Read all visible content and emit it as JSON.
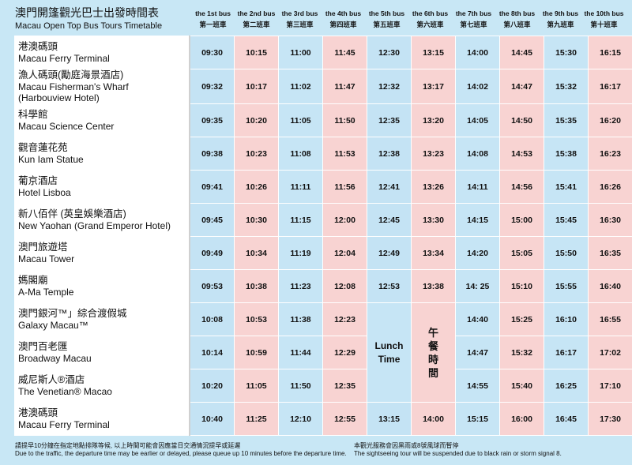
{
  "title": {
    "zh": "澳門開篷觀光巴士出發時間表",
    "en": "Macau Open Top Bus Tours Timetable"
  },
  "buses": [
    {
      "en": "the 1st bus",
      "zh": "第一班車"
    },
    {
      "en": "the 2nd bus",
      "zh": "第二班車"
    },
    {
      "en": "the 3rd bus",
      "zh": "第三班車"
    },
    {
      "en": "the 4th bus",
      "zh": "第四班車"
    },
    {
      "en": "the 5th bus",
      "zh": "第五班車"
    },
    {
      "en": "the 6th bus",
      "zh": "第六班車"
    },
    {
      "en": "the 7th bus",
      "zh": "第七班車"
    },
    {
      "en": "the 8th bus",
      "zh": "第八班車"
    },
    {
      "en": "the 9th bus",
      "zh": "第九班車"
    },
    {
      "en": "the 10th bus",
      "zh": "第十班車"
    }
  ],
  "stops": [
    {
      "zh": "港澳碼頭",
      "en": "Macau Ferry Terminal",
      "times": [
        "09:30",
        "10:15",
        "11:00",
        "11:45",
        "12:30",
        "13:15",
        "14:00",
        "14:45",
        "15:30",
        "16:15"
      ]
    },
    {
      "zh": "漁人碼頭(勵庭海景酒店)",
      "en": "Macau Fisherman's Wharf",
      "en2": "(Harbouview Hotel)",
      "times": [
        "09:32",
        "10:17",
        "11:02",
        "11:47",
        "12:32",
        "13:17",
        "14:02",
        "14:47",
        "15:32",
        "16:17"
      ]
    },
    {
      "zh": "科學館",
      "en": "Macau Science Center",
      "times": [
        "09:35",
        "10:20",
        "11:05",
        "11:50",
        "12:35",
        "13:20",
        "14:05",
        "14:50",
        "15:35",
        "16:20"
      ]
    },
    {
      "zh": "觀音蓮花苑",
      "en": "Kun Iam Statue",
      "times": [
        "09:38",
        "10:23",
        "11:08",
        "11:53",
        "12:38",
        "13:23",
        "14:08",
        "14:53",
        "15:38",
        "16:23"
      ]
    },
    {
      "zh": "葡京酒店",
      "en": "Hotel Lisboa",
      "times": [
        "09:41",
        "10:26",
        "11:11",
        "11:56",
        "12:41",
        "13:26",
        "14:11",
        "14:56",
        "15:41",
        "16:26"
      ]
    },
    {
      "zh": "新八佰伴 (英皇娛樂酒店)",
      "en": "New Yaohan (Grand Emperor Hotel)",
      "times": [
        "09:45",
        "10:30",
        "11:15",
        "12:00",
        "12:45",
        "13:30",
        "14:15",
        "15:00",
        "15:45",
        "16:30"
      ]
    },
    {
      "zh": "澳門旅遊塔",
      "en": "Macau Tower",
      "times": [
        "09:49",
        "10:34",
        "11:19",
        "12:04",
        "12:49",
        "13:34",
        "14:20",
        "15:05",
        "15:50",
        "16:35"
      ]
    },
    {
      "zh": "媽閣廟",
      "en": "A-Ma Temple",
      "times": [
        "09:53",
        "10:38",
        "11:23",
        "12:08",
        "12:53",
        "13:38",
        "14: 25",
        "15:10",
        "15:55",
        "16:40"
      ]
    },
    {
      "zh": "澳門銀河™」綜合渡假城",
      "en": "Galaxy Macau™",
      "times": [
        "10:08",
        "10:53",
        "11:38",
        "12:23",
        "",
        "",
        "14:40",
        "15:25",
        "16:10",
        "16:55"
      ]
    },
    {
      "zh": "澳門百老匯",
      "en": "Broadway Macau",
      "times": [
        "10:14",
        "10:59",
        "11:44",
        "12:29",
        "",
        "",
        "14:47",
        "15:32",
        "16:17",
        "17:02"
      ]
    },
    {
      "zh": "威尼斯人®酒店",
      "en": "The Venetian® Macao",
      "times": [
        "10:20",
        "11:05",
        "11:50",
        "12:35",
        "",
        "",
        "14:55",
        "15:40",
        "16:25",
        "17:10"
      ]
    },
    {
      "zh": "港澳碼頭",
      "en": "Macau Ferry Terminal",
      "times": [
        "10:40",
        "11:25",
        "12:10",
        "12:55",
        "13:15",
        "14:00",
        "15:15",
        "16:00",
        "16:45",
        "17:30"
      ]
    }
  ],
  "lunch": {
    "en_line1": "Lunch",
    "en_line2": "Time",
    "zh": [
      "午",
      "餐",
      "時",
      "間"
    ]
  },
  "footer": {
    "left_zh": "請提早10分鐘在指定地點排隊等候, 以上時間可能會因應當日交通情況提早或延遲",
    "left_en": "Due to the traffic, the departure time may be earlier or delayed, please queue up 10 minutes before the  departure time.",
    "right_zh": "本觀光服務會因黑雨或8號風球而暫停",
    "right_en": "The sightseeing tour will be suspended due to black rain or storm signal 8."
  }
}
